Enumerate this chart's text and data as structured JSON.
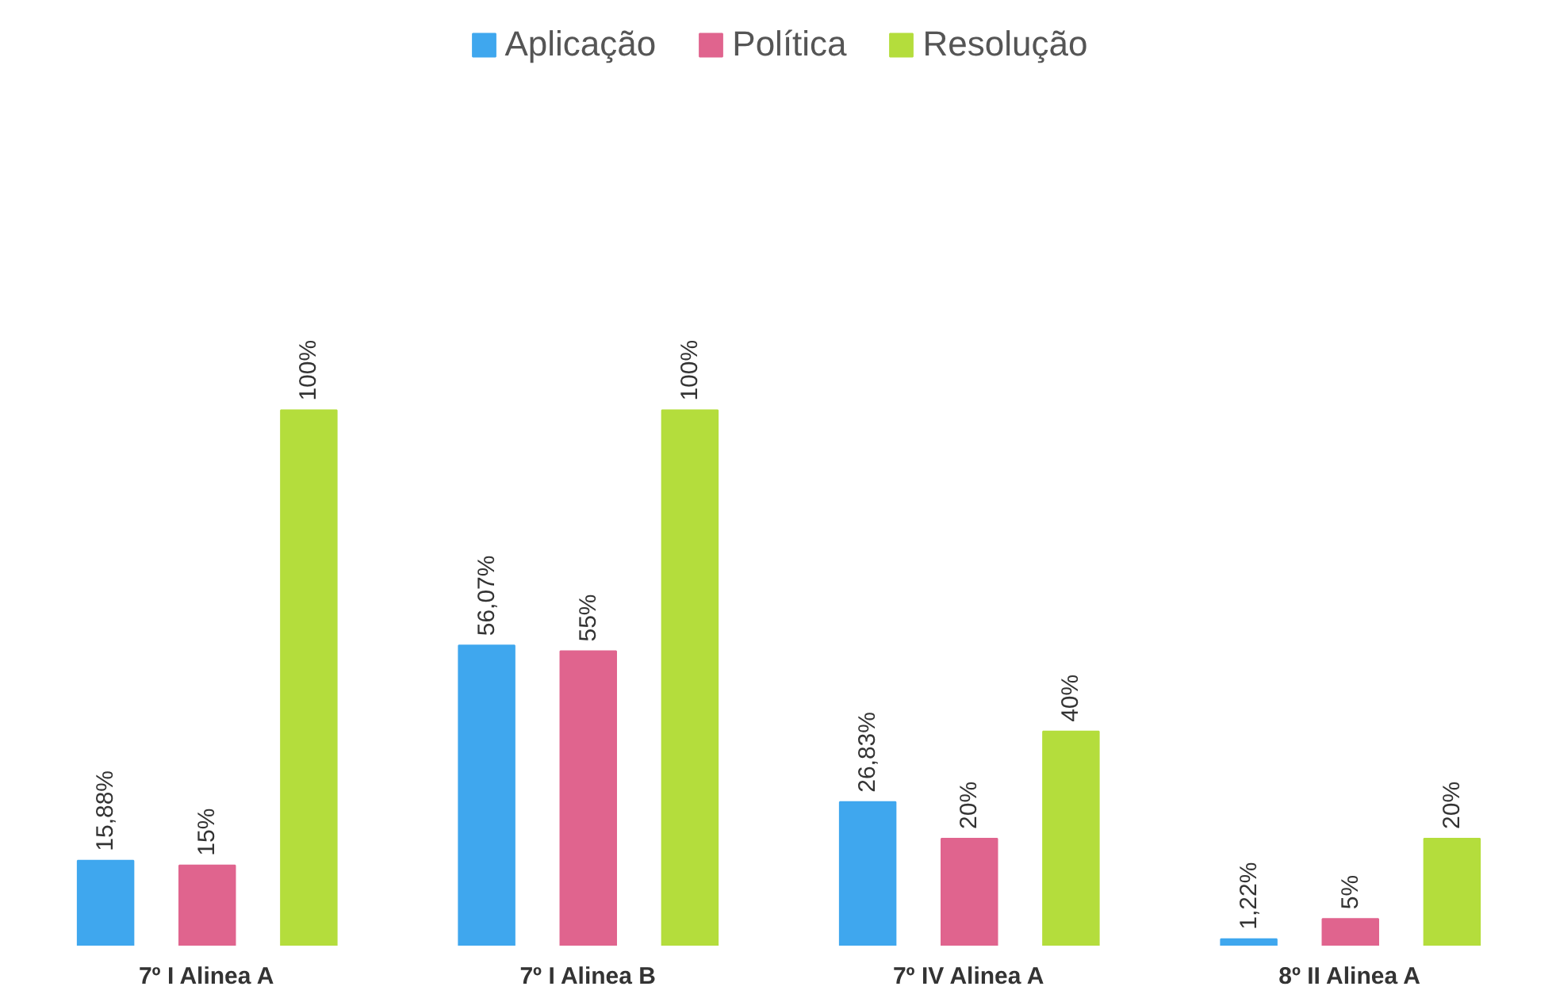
{
  "chart_data": {
    "type": "bar",
    "categories": [
      "7º I Alinea A",
      "7º I Alinea B",
      "7º IV Alinea A",
      "8º II Alinea A"
    ],
    "series": [
      {
        "name": "Aplicação",
        "color": "#3fa7ee",
        "values": [
          15.88,
          56.07,
          26.83,
          1.22
        ],
        "value_labels": [
          "15,88%",
          "56,07%",
          "26,83%",
          "1,22%"
        ]
      },
      {
        "name": "Política",
        "color": "#e0648e",
        "values": [
          15,
          55,
          20,
          5
        ],
        "value_labels": [
          "15%",
          "55%",
          "20%",
          "5%"
        ]
      },
      {
        "name": "Resolução",
        "color": "#b4dd3c",
        "values": [
          100,
          100,
          40,
          20
        ],
        "value_labels": [
          "100%",
          "100%",
          "40%",
          "20%"
        ]
      }
    ],
    "legend": "top",
    "grid": false
  }
}
